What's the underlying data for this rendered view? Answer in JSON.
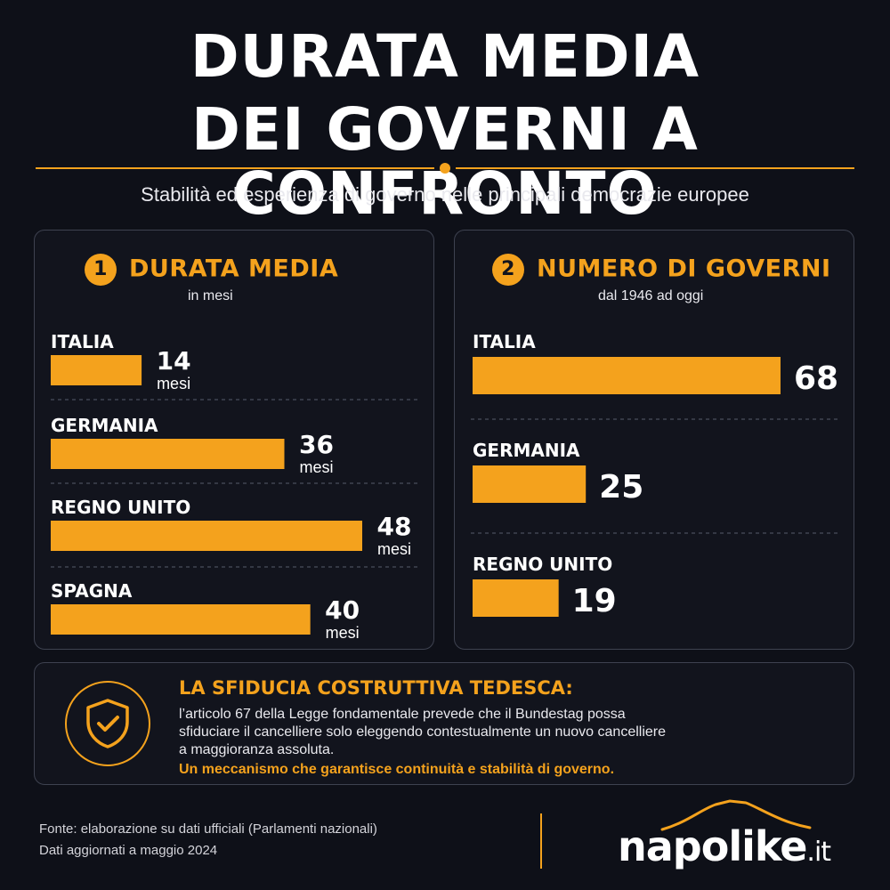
{
  "header": {
    "title_line1": "DURATA MEDIA",
    "title_line2": "DEI GOVERNI A CONFRONTO",
    "subtitle": "Stabilità ed esperienza di governo nelle principali democrazie europee"
  },
  "colors": {
    "accent": "#f4a21d",
    "background": "#0e1018",
    "panel_border": "#3e4250"
  },
  "chart_data": [
    {
      "type": "bar",
      "orientation": "horizontal",
      "number": "1",
      "title": "DURATA MEDIA",
      "subtitle": "in mesi",
      "categories": [
        "ITALIA",
        "GERMANIA",
        "REGNO UNITO",
        "SPAGNA"
      ],
      "values": [
        14,
        36,
        48,
        40
      ],
      "value_unit": "mesi",
      "xlim": [
        0,
        48
      ],
      "grid": false,
      "color": "#f4a21d"
    },
    {
      "type": "bar",
      "orientation": "horizontal",
      "number": "2",
      "title": "NUMERO DI GOVERNI",
      "subtitle": "dal 1946 ad oggi",
      "categories": [
        "ITALIA",
        "GERMANIA",
        "REGNO UNITO"
      ],
      "values": [
        68,
        25,
        19
      ],
      "value_unit": "",
      "xlim": [
        0,
        68
      ],
      "grid": false,
      "color": "#f4a21d"
    }
  ],
  "info_box": {
    "icon": "shield-check-icon",
    "title": "LA SFIDUCIA COSTRUTTIVA TEDESCA:",
    "body": "l’articolo 67 della Legge fondamentale prevede che il Bundestag possa sfiduciare il cancelliere solo eleggendo contestualmente un nuovo cancelliere a maggioranza assoluta.",
    "highlight": "Un meccanismo che garantisce continuità e stabilità di governo."
  },
  "footer": {
    "source_line1": "Fonte: elaborazione su dati ufficiali (Parlamenti nazionali)",
    "source_line2": "Dati aggiornati a maggio 2024",
    "logo_name": "napolike",
    "logo_tld": ".it"
  }
}
